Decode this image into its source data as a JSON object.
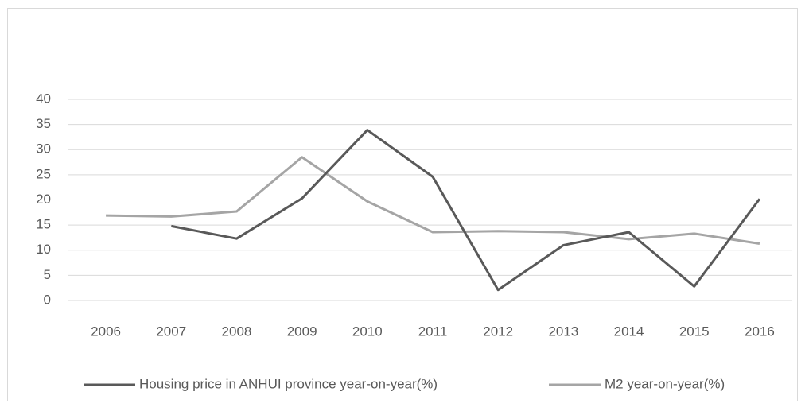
{
  "chart_data": {
    "type": "line",
    "categories": [
      "2006",
      "2007",
      "2008",
      "2009",
      "2010",
      "2011",
      "2012",
      "2013",
      "2014",
      "2015",
      "2016"
    ],
    "series": [
      {
        "name": "Housing price in ANHUI province year-on-year(%)",
        "color": "#595959",
        "values": [
          null,
          14.8,
          12.3,
          20.3,
          33.9,
          24.6,
          2.1,
          11.0,
          13.6,
          2.8,
          20.2
        ]
      },
      {
        "name": "M2 year-on-year(%)",
        "color": "#a5a5a5",
        "values": [
          16.9,
          16.7,
          17.7,
          28.5,
          19.7,
          13.6,
          13.8,
          13.6,
          12.2,
          13.3,
          11.3
        ]
      }
    ],
    "ylim": [
      0,
      40
    ],
    "yticks": [
      0,
      5,
      10,
      15,
      20,
      25,
      30,
      35,
      40
    ],
    "grid": true,
    "legend": "bottom"
  }
}
